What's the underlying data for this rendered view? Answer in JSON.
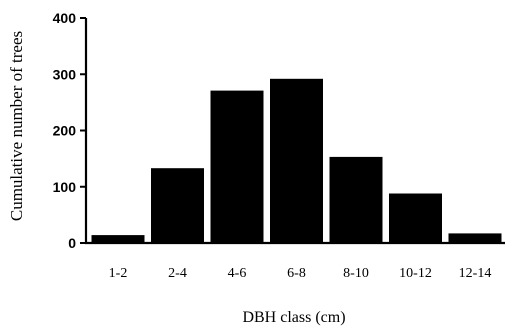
{
  "chart_data": {
    "type": "bar",
    "title": "",
    "xlabel": "DBH class (cm)",
    "ylabel": "Cumulative number of trees",
    "categories": [
      "1-2",
      "2-4",
      "4-6",
      "6-8",
      "8-10",
      "10-12",
      "12-14"
    ],
    "values": [
      14,
      133,
      271,
      292,
      153,
      88,
      17
    ],
    "ylim": [
      0,
      400
    ],
    "yticks": [
      "0",
      "100",
      "200",
      "300",
      "400"
    ],
    "bar_color": "#000000",
    "grid": false,
    "legend": "none"
  }
}
